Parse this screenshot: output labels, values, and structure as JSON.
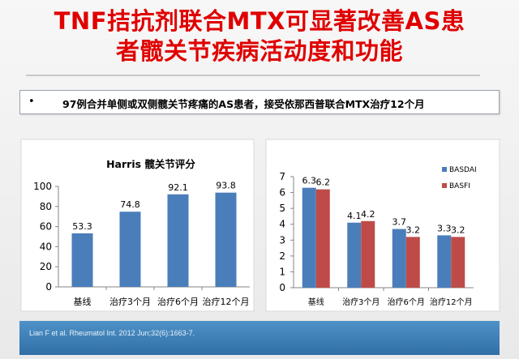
{
  "slide": {
    "title_line1": "TNF拮抗剂联合MTX可显著改善AS患",
    "title_line2": "者髋关节疾病活动度和功能",
    "bullet_marker": "•",
    "bullet_text": "97例合并单侧或双侧髋关节疼痛的AS患者，接受依那西普联合MTX治疗12个月",
    "footer_text": "Lian F et al. Rheumatol Int. 2012 Jun;32(6):1663-7."
  },
  "colors": {
    "title": "#e00000",
    "bar_blue": "#4a7ebb",
    "bar_red": "#be4b48",
    "footer": "#3a7bb4"
  },
  "chart_data": [
    {
      "type": "bar",
      "title": "Harris 髋关节评分",
      "categories": [
        "基线",
        "治疗3个月",
        "治疗6个月",
        "治疗12个月"
      ],
      "series": [
        {
          "values": [
            53.3,
            74.8,
            92.1,
            93.8
          ],
          "labels": [
            "53.3",
            "74.8",
            "92.1",
            "93.8"
          ]
        }
      ],
      "ylim": [
        0,
        100
      ],
      "yticks": [
        0,
        20,
        40,
        60,
        80,
        100
      ],
      "grid": false,
      "legend": "none"
    },
    {
      "type": "bar",
      "categories": [
        "基线",
        "治疗3个月",
        "治疗6个月",
        "治疗12个月"
      ],
      "series": [
        {
          "name": "BASDAI",
          "values": [
            6.3,
            4.1,
            3.7,
            3.3
          ],
          "labels": [
            "6.3",
            "4.1",
            "3.7",
            "3.3"
          ]
        },
        {
          "name": "BASFI",
          "values": [
            6.2,
            4.2,
            3.2,
            3.2
          ],
          "labels": [
            "6.2",
            "4.2",
            "3.2",
            "3.2"
          ]
        }
      ],
      "ylim": [
        0,
        7
      ],
      "yticks": [
        0,
        1,
        2,
        3,
        4,
        5,
        6,
        7
      ],
      "grid": false,
      "legend": "right"
    }
  ]
}
